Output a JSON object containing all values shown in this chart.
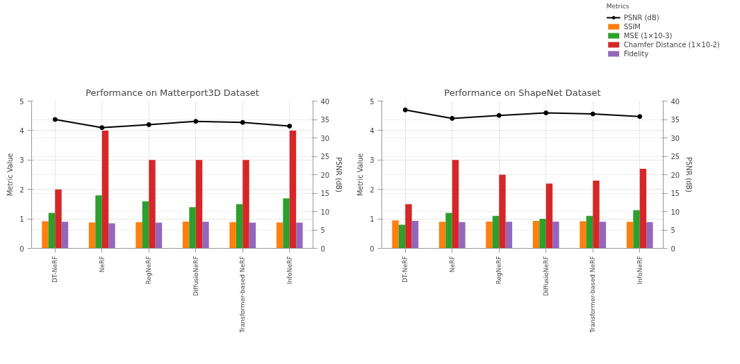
{
  "chart_data": [
    {
      "type": "bar",
      "title": "Performance on Matterport3D Dataset",
      "ylabel": "Metric Value",
      "y2label": "PSNR (dB)",
      "categories": [
        "DT-NeRF",
        "NeRF",
        "RegNeRF",
        "DiffusioNeRF",
        "Transformer-based NeRF",
        "InfoNeRF"
      ],
      "ylim": [
        0,
        5
      ],
      "yticks": [
        0,
        1,
        2,
        3,
        4,
        5
      ],
      "y2lim": [
        0,
        40
      ],
      "y2ticks": [
        0,
        5,
        10,
        15,
        20,
        25,
        30,
        35,
        40
      ],
      "grid": true,
      "legend": false,
      "series": [
        {
          "type": "line",
          "axis": "y2",
          "marker": "circle",
          "color": "#000000",
          "values": [
            35,
            32.8,
            33.6,
            34.5,
            34.2,
            33.2
          ]
        },
        {
          "color": "#ff7f0e",
          "values": [
            0.92,
            0.88,
            0.89,
            0.91,
            0.89,
            0.88
          ]
        },
        {
          "color": "#2ca02c",
          "values": [
            1.2,
            1.8,
            1.6,
            1.4,
            1.5,
            1.7
          ]
        },
        {
          "color": "#d62728",
          "values": [
            2,
            4,
            3,
            3,
            3,
            4
          ]
        },
        {
          "color": "#9467bd",
          "values": [
            0.9,
            0.85,
            0.87,
            0.9,
            0.87,
            0.87
          ]
        }
      ]
    },
    {
      "type": "bar",
      "title": "Performance on ShapeNet Dataset",
      "ylabel": "Metric Value",
      "y2label": "PSNR (dB)",
      "categories": [
        "DT-NeRF",
        "NeRF",
        "RegNeRF",
        "DiffusioNeRF",
        "Transformer-based NeRF",
        "InfoNeRF"
      ],
      "ylim": [
        0,
        5
      ],
      "yticks": [
        0,
        1,
        2,
        3,
        4,
        5
      ],
      "y2lim": [
        0,
        40
      ],
      "y2ticks": [
        0,
        5,
        10,
        15,
        20,
        25,
        30,
        35,
        40
      ],
      "grid": true,
      "legend": "top right",
      "legend_title": "Metrics",
      "series": [
        {
          "name": "PSNR (dB)",
          "type": "line",
          "axis": "y2",
          "marker": "circle",
          "color": "#000000",
          "values": [
            37.6,
            35.3,
            36.1,
            36.8,
            36.5,
            35.8
          ]
        },
        {
          "name": "SSIM",
          "color": "#ff7f0e",
          "values": [
            0.95,
            0.9,
            0.91,
            0.93,
            0.92,
            0.9
          ]
        },
        {
          "name": "MSE (1×10-3)",
          "color": "#2ca02c",
          "values": [
            0.8,
            1.2,
            1.1,
            1.0,
            1.1,
            1.3
          ]
        },
        {
          "name": "Chamfer Distance (1×10-2)",
          "color": "#d62728",
          "values": [
            1.5,
            3,
            2.5,
            2.2,
            2.3,
            2.7
          ]
        },
        {
          "name": "Fidelity",
          "color": "#9467bd",
          "values": [
            0.93,
            0.89,
            0.9,
            0.91,
            0.9,
            0.89
          ]
        }
      ]
    }
  ]
}
